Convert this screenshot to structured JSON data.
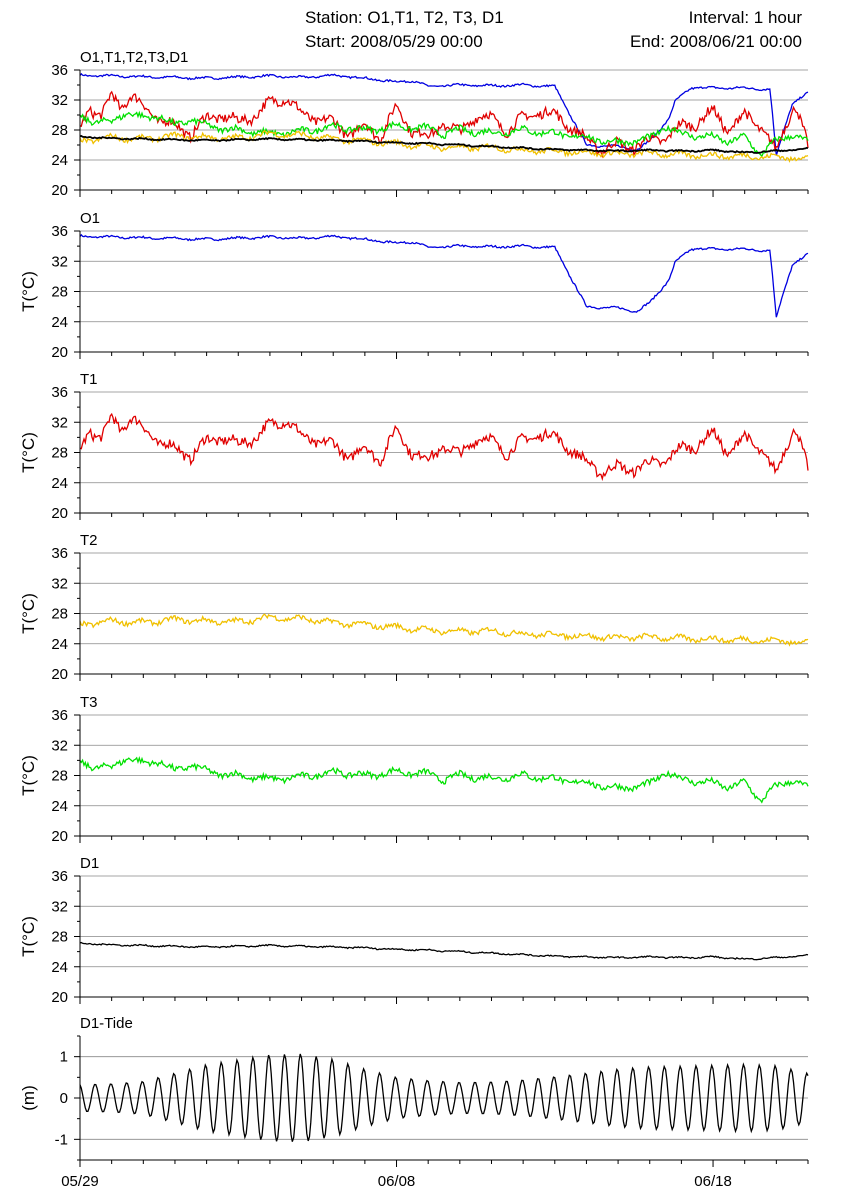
{
  "header": {
    "title": "Station: O1,T1, T2, T3, D1",
    "start": "Start: 2008/05/29 00:00",
    "interval": "Interval: 1 hour",
    "end": "End: 2008/06/21 00:00"
  },
  "chart_data": [
    {
      "id": "all",
      "type": "line",
      "title": "O1,T1,T2,T3,D1",
      "ylabel": "",
      "ylim": [
        20,
        36
      ],
      "yticks": [
        20,
        24,
        28,
        32,
        36
      ],
      "grid": true,
      "series_ref": [
        "O1",
        "T1",
        "T3",
        "T2",
        "D1"
      ]
    },
    {
      "id": "O1",
      "type": "line",
      "title": "O1",
      "ylabel": "T(°C)",
      "ylim": [
        20,
        36
      ],
      "yticks": [
        20,
        24,
        28,
        32,
        36
      ],
      "grid": true,
      "series": [
        {
          "name": "O1",
          "color": "#0000e0",
          "x": [
            0,
            2,
            4,
            6,
            7,
            8,
            9,
            10,
            10.5,
            11,
            12,
            13,
            14,
            15,
            16,
            17,
            17.6,
            18.0,
            18.6,
            18.8,
            19.3,
            19.5,
            20.0,
            21.0,
            21.8,
            22.0,
            22.2,
            22.5,
            23.0
          ],
          "y": [
            35.3,
            35.1,
            34.9,
            35.2,
            35.0,
            35.3,
            34.9,
            34.4,
            34.6,
            33.8,
            34.0,
            33.9,
            34.0,
            33.8,
            26.0,
            25.8,
            25.4,
            26.5,
            29.5,
            31.8,
            33.6,
            33.7,
            33.6,
            33.6,
            33.4,
            24.6,
            27.5,
            31.5,
            32.9
          ]
        }
      ]
    },
    {
      "id": "T1",
      "type": "line",
      "title": "T1",
      "ylabel": "T(°C)",
      "ylim": [
        20,
        36
      ],
      "yticks": [
        20,
        24,
        28,
        32,
        36
      ],
      "grid": true,
      "series": [
        {
          "name": "T1",
          "color": "#e00000",
          "x": [
            0,
            0.3,
            0.7,
            1,
            1.3,
            1.6,
            2,
            2.5,
            3,
            3.5,
            4,
            4.5,
            5,
            5.5,
            6,
            6.5,
            7,
            7.5,
            8,
            8.5,
            9,
            9.5,
            10,
            10.5,
            11,
            11.5,
            12,
            12.5,
            13,
            13.5,
            14,
            14.5,
            15,
            15.5,
            16,
            16.5,
            17,
            17.5,
            18,
            18.5,
            19,
            19.5,
            20,
            20.5,
            21,
            21.5,
            22,
            22.3,
            22.6,
            23
          ],
          "y": [
            28,
            31,
            30,
            32.5,
            31,
            32.8,
            31,
            29.5,
            28.5,
            27.5,
            29.5,
            30,
            29,
            30,
            31.5,
            32.5,
            30,
            29.5,
            29,
            27.5,
            28.5,
            27.2,
            31,
            28,
            27,
            29,
            27.5,
            30,
            29.5,
            28,
            29.5,
            30.5,
            30,
            28.5,
            26.5,
            25.5,
            26,
            25.8,
            26.5,
            27,
            28.5,
            29,
            30.5,
            28,
            30,
            28.5,
            25,
            29,
            31.5,
            25.5
          ]
        }
      ]
    },
    {
      "id": "T2",
      "type": "line",
      "title": "T2",
      "ylabel": "T(°C)",
      "ylim": [
        20,
        36
      ],
      "yticks": [
        20,
        24,
        28,
        32,
        36
      ],
      "grid": true,
      "series": [
        {
          "name": "T2",
          "color": "#f0c000",
          "x": [
            0,
            1,
            2,
            3,
            4,
            5,
            6,
            7,
            8,
            9,
            10,
            11,
            12,
            13,
            14,
            15,
            16,
            17,
            18,
            19,
            20,
            21,
            22,
            23
          ],
          "y": [
            26.5,
            27.0,
            26.8,
            27.2,
            27.0,
            26.9,
            27.5,
            27.3,
            26.8,
            26.5,
            26.2,
            25.8,
            25.6,
            25.7,
            25.3,
            25.2,
            25.0,
            24.8,
            24.9,
            24.7,
            24.6,
            24.5,
            24.4,
            24.2
          ]
        }
      ]
    },
    {
      "id": "T3",
      "type": "line",
      "title": "T3",
      "ylabel": "T(°C)",
      "ylim": [
        20,
        36
      ],
      "yticks": [
        20,
        24,
        28,
        32,
        36
      ],
      "grid": true,
      "series": [
        {
          "name": "T3",
          "color": "#00e000",
          "x": [
            0,
            1,
            1.5,
            2,
            2.5,
            3,
            3.5,
            4,
            5,
            6,
            7,
            8,
            9,
            10,
            11,
            11.5,
            12,
            13,
            14,
            15,
            16,
            17,
            18,
            18.5,
            19,
            20,
            20.5,
            21,
            21.5,
            22,
            22.5,
            23
          ],
          "y": [
            29.5,
            29.0,
            30.5,
            29.5,
            30.0,
            28.5,
            29.5,
            28.5,
            28.0,
            27.5,
            27.8,
            28.5,
            28.0,
            28.5,
            28.2,
            27.5,
            28.0,
            27.6,
            28.0,
            27.5,
            27.0,
            26.3,
            26.8,
            28.5,
            27.5,
            27.0,
            26.5,
            27.0,
            24.8,
            26.5,
            27.5,
            26.2
          ]
        }
      ]
    },
    {
      "id": "D1",
      "type": "line",
      "title": "D1",
      "ylabel": "T(°C)",
      "ylim": [
        20,
        36
      ],
      "yticks": [
        20,
        24,
        28,
        32,
        36
      ],
      "grid": true,
      "series": [
        {
          "name": "D1",
          "color": "#000000",
          "x": [
            0,
            1,
            2,
            3,
            4,
            5,
            6,
            7,
            8,
            9,
            10,
            11,
            12,
            13,
            14,
            15,
            16,
            17,
            18,
            19,
            20,
            21,
            22,
            23
          ],
          "y": [
            27.1,
            26.9,
            26.8,
            26.7,
            26.6,
            26.7,
            26.8,
            26.7,
            26.6,
            26.5,
            26.3,
            26.2,
            26.0,
            25.8,
            25.6,
            25.4,
            25.3,
            25.2,
            25.3,
            25.2,
            25.3,
            25.0,
            25.2,
            25.5
          ]
        }
      ]
    },
    {
      "id": "tide",
      "type": "line",
      "title": "D1-Tide",
      "ylabel": "(m)",
      "ylim": [
        -1.5,
        1.5
      ],
      "yticks": [
        -1,
        0,
        1
      ],
      "grid": true,
      "series": [
        {
          "name": "D1-Tide",
          "color": "#000000",
          "x": [
            0,
            1,
            2,
            3,
            4,
            5,
            6,
            7,
            8,
            9,
            10,
            11,
            12,
            13,
            14,
            15,
            16,
            17,
            18,
            19,
            20,
            21,
            22,
            23
          ],
          "amplitude_m": [
            0.35,
            0.38,
            0.45,
            0.65,
            0.85,
            0.95,
            1.05,
            1.05,
            0.9,
            0.65,
            0.45,
            0.38,
            0.35,
            0.38,
            0.45,
            0.55,
            0.65,
            0.75,
            0.8,
            0.8,
            0.8,
            0.8,
            0.75,
            0.55
          ],
          "period_days": 0.5
        }
      ]
    }
  ],
  "x_axis": {
    "xlim": [
      0,
      23
    ],
    "tick_labels": [
      {
        "x": 0,
        "label": "05/29"
      },
      {
        "x": 10,
        "label": "06/08"
      },
      {
        "x": 20,
        "label": "06/18"
      }
    ]
  }
}
